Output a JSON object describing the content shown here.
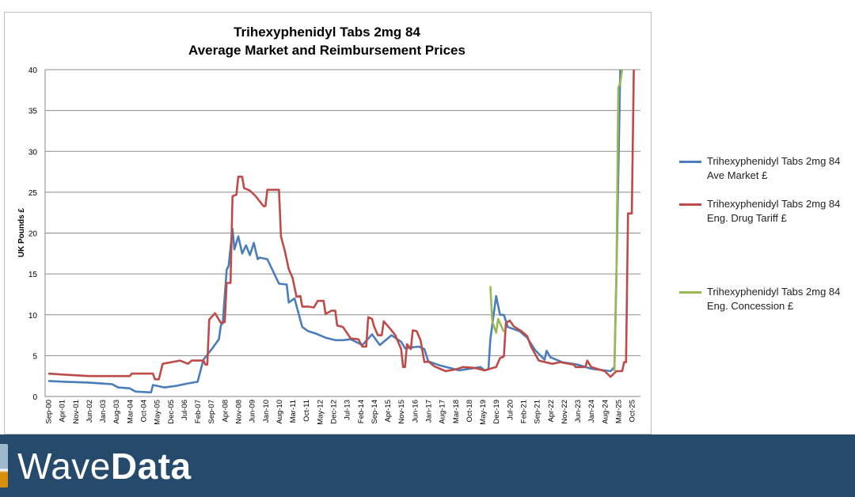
{
  "chart_data": {
    "type": "line",
    "title": "Trihexyphenidyl Tabs 2mg 84",
    "subtitle": "Average Market and Reimbursement Prices",
    "xlabel": "",
    "ylabel": "UK Pounds £",
    "ylim": [
      0,
      40
    ],
    "yticks": [
      0,
      5,
      10,
      15,
      20,
      25,
      30,
      35,
      40
    ],
    "xrange": [
      "2000-09",
      "2026-01"
    ],
    "xtick_labels": [
      "Sep-00",
      "Apr-01",
      "Nov-01",
      "Jun-02",
      "Jan-03",
      "Aug-03",
      "Mar-04",
      "Oct-04",
      "May-05",
      "Dec-05",
      "Jul-06",
      "Feb-07",
      "Sep-07",
      "Apr-08",
      "Nov-08",
      "Jun-09",
      "Jan-10",
      "Aug-10",
      "Mar-11",
      "Oct-11",
      "May-12",
      "Dec-12",
      "Jul-13",
      "Feb-14",
      "Sep-14",
      "Apr-15",
      "Nov-15",
      "Jun-16",
      "Jan-17",
      "Aug-17",
      "Mar-18",
      "Oct-18",
      "May-19",
      "Dec-19",
      "Jul-20",
      "Feb-21",
      "Sep-21",
      "Apr-22",
      "Nov-22",
      "Jun-23",
      "Jan-24",
      "Aug-24",
      "Mar-25",
      "Oct-25"
    ],
    "grid": true,
    "legend_placement": "right",
    "series": [
      {
        "name": "Trihexyphenidyl Tabs 2mg 84\nAve Market £",
        "color": "#4a7ebb",
        "points": [
          [
            "2000-09",
            1.9
          ],
          [
            "2001-06",
            1.8
          ],
          [
            "2002-06",
            1.7
          ],
          [
            "2003-06",
            1.5
          ],
          [
            "2003-09",
            1.1
          ],
          [
            "2004-03",
            1.0
          ],
          [
            "2004-06",
            0.6
          ],
          [
            "2005-02",
            0.5
          ],
          [
            "2005-03",
            1.4
          ],
          [
            "2005-09",
            1.1
          ],
          [
            "2006-03",
            1.3
          ],
          [
            "2006-09",
            1.6
          ],
          [
            "2007-02",
            1.8
          ],
          [
            "2007-05",
            4.5
          ],
          [
            "2007-09",
            5.7
          ],
          [
            "2008-01",
            7
          ],
          [
            "2008-02",
            8.7
          ],
          [
            "2008-03",
            9
          ],
          [
            "2008-05",
            15.5
          ],
          [
            "2008-06",
            16
          ],
          [
            "2008-08",
            20.5
          ],
          [
            "2008-09",
            18
          ],
          [
            "2008-11",
            19.6
          ],
          [
            "2009-01",
            17.5
          ],
          [
            "2009-03",
            18.5
          ],
          [
            "2009-05",
            17.3
          ],
          [
            "2009-07",
            18.8
          ],
          [
            "2009-09",
            16.8
          ],
          [
            "2009-10",
            17
          ],
          [
            "2010-02",
            16.8
          ],
          [
            "2010-06",
            14.8
          ],
          [
            "2010-08",
            13.8
          ],
          [
            "2010-12",
            13.7
          ],
          [
            "2011-01",
            11.5
          ],
          [
            "2011-04",
            12
          ],
          [
            "2011-08",
            8.5
          ],
          [
            "2011-11",
            8
          ],
          [
            "2012-03",
            7.7
          ],
          [
            "2012-08",
            7.2
          ],
          [
            "2013-01",
            6.9
          ],
          [
            "2013-05",
            6.9
          ],
          [
            "2013-09",
            7
          ],
          [
            "2014-03",
            6.3
          ],
          [
            "2014-08",
            7.6
          ],
          [
            "2014-12",
            6.3
          ],
          [
            "2015-06",
            7.5
          ],
          [
            "2015-11",
            6.7
          ],
          [
            "2016-01",
            5.9
          ],
          [
            "2016-04",
            6
          ],
          [
            "2016-08",
            6.1
          ],
          [
            "2016-11",
            5.8
          ],
          [
            "2017-01",
            4.3
          ],
          [
            "2017-07",
            3.8
          ],
          [
            "2018-05",
            3.2
          ],
          [
            "2019-04",
            3.6
          ],
          [
            "2019-06",
            3.2
          ],
          [
            "2019-08",
            3.3
          ],
          [
            "2019-09",
            7.0
          ],
          [
            "2019-12",
            12.3
          ],
          [
            "2020-02",
            10
          ],
          [
            "2020-04",
            10
          ],
          [
            "2020-06",
            8.5
          ],
          [
            "2020-12",
            8
          ],
          [
            "2021-04",
            7.2
          ],
          [
            "2021-08",
            5.7
          ],
          [
            "2022-01",
            4.5
          ],
          [
            "2022-02",
            5.6
          ],
          [
            "2022-04",
            4.8
          ],
          [
            "2022-10",
            4.2
          ],
          [
            "2023-06",
            3.9
          ],
          [
            "2024-01",
            3.4
          ],
          [
            "2024-11",
            3.1
          ],
          [
            "2025-01",
            3.6
          ],
          [
            "2025-02",
            14.8
          ],
          [
            "2025-04",
            40
          ]
        ]
      },
      {
        "name": "Trihexyphenidyl Tabs 2mg 84\nEng. Drug Tariff £",
        "color": "#be4b48",
        "points": [
          [
            "2000-09",
            2.8
          ],
          [
            "2001-03",
            2.7
          ],
          [
            "2002-06",
            2.5
          ],
          [
            "2004-03",
            2.5
          ],
          [
            "2004-04",
            2.8
          ],
          [
            "2005-03",
            2.8
          ],
          [
            "2005-04",
            2.1
          ],
          [
            "2005-06",
            2.1
          ],
          [
            "2005-08",
            4.0
          ],
          [
            "2006-05",
            4.4
          ],
          [
            "2006-09",
            4.0
          ],
          [
            "2006-11",
            4.4
          ],
          [
            "2007-05",
            4.4
          ],
          [
            "2007-06",
            3.9
          ],
          [
            "2007-07",
            3.9
          ],
          [
            "2007-08",
            9.4
          ],
          [
            "2007-11",
            10.2
          ],
          [
            "2008-02",
            9.0
          ],
          [
            "2008-04",
            9.1
          ],
          [
            "2008-05",
            13.9
          ],
          [
            "2008-07",
            13.9
          ],
          [
            "2008-08",
            24.5
          ],
          [
            "2008-10",
            24.7
          ],
          [
            "2008-11",
            26.9
          ],
          [
            "2009-01",
            26.9
          ],
          [
            "2009-02",
            25.5
          ],
          [
            "2009-05",
            25.2
          ],
          [
            "2009-08",
            24.5
          ],
          [
            "2009-12",
            23.3
          ],
          [
            "2010-01",
            23.3
          ],
          [
            "2010-02",
            25.3
          ],
          [
            "2010-08",
            25.3
          ],
          [
            "2010-09",
            19.6
          ],
          [
            "2010-11",
            17.8
          ],
          [
            "2011-01",
            15.6
          ],
          [
            "2011-03",
            14.5
          ],
          [
            "2011-05",
            12.2
          ],
          [
            "2011-07",
            12.3
          ],
          [
            "2011-08",
            11
          ],
          [
            "2011-11",
            11
          ],
          [
            "2012-02",
            10.9
          ],
          [
            "2012-04",
            11.7
          ],
          [
            "2012-07",
            11.7
          ],
          [
            "2012-08",
            10.1
          ],
          [
            "2012-11",
            10.5
          ],
          [
            "2013-01",
            10.5
          ],
          [
            "2013-02",
            8.7
          ],
          [
            "2013-05",
            8.5
          ],
          [
            "2013-09",
            7.1
          ],
          [
            "2014-01",
            7.0
          ],
          [
            "2014-03",
            6.1
          ],
          [
            "2014-05",
            6.1
          ],
          [
            "2014-06",
            9.7
          ],
          [
            "2014-08",
            9.5
          ],
          [
            "2014-09",
            8.6
          ],
          [
            "2014-11",
            7.5
          ],
          [
            "2015-01",
            7.5
          ],
          [
            "2015-02",
            9.2
          ],
          [
            "2015-05",
            8.4
          ],
          [
            "2015-08",
            7.5
          ],
          [
            "2015-11",
            5.8
          ],
          [
            "2015-12",
            3.6
          ],
          [
            "2016-01",
            3.6
          ],
          [
            "2016-02",
            6.4
          ],
          [
            "2016-04",
            5.8
          ],
          [
            "2016-05",
            8.1
          ],
          [
            "2016-07",
            8.0
          ],
          [
            "2016-09",
            6.9
          ],
          [
            "2016-11",
            4.2
          ],
          [
            "2017-01",
            4.3
          ],
          [
            "2017-04",
            3.7
          ],
          [
            "2017-10",
            3.1
          ],
          [
            "2018-03",
            3.3
          ],
          [
            "2018-07",
            3.6
          ],
          [
            "2019-01",
            3.5
          ],
          [
            "2019-06",
            3.2
          ],
          [
            "2019-12",
            3.6
          ],
          [
            "2020-02",
            4.7
          ],
          [
            "2020-04",
            4.9
          ],
          [
            "2020-05",
            9.0
          ],
          [
            "2020-07",
            9.3
          ],
          [
            "2020-09",
            8.6
          ],
          [
            "2021-01",
            8.0
          ],
          [
            "2021-04",
            7.4
          ],
          [
            "2021-06",
            6.1
          ],
          [
            "2021-10",
            4.4
          ],
          [
            "2022-05",
            4.0
          ],
          [
            "2022-09",
            4.2
          ],
          [
            "2023-04",
            3.9
          ],
          [
            "2023-05",
            3.6
          ],
          [
            "2023-10",
            3.6
          ],
          [
            "2023-11",
            4.4
          ],
          [
            "2024-01",
            3.6
          ],
          [
            "2024-08",
            3.1
          ],
          [
            "2024-11",
            2.4
          ],
          [
            "2025-02",
            3.1
          ],
          [
            "2025-05",
            3.1
          ],
          [
            "2025-06",
            4.2
          ],
          [
            "2025-07",
            4.2
          ],
          [
            "2025-08",
            22.4
          ],
          [
            "2025-10",
            22.4
          ],
          [
            "2025-11",
            40
          ]
        ]
      },
      {
        "name": "Trihexyphenidyl Tabs 2mg 84\nEng. Concession £",
        "color": "#98b954",
        "segments": [
          [
            [
              "2019-09",
              13.5
            ],
            [
              "2019-10",
              9.2
            ],
            [
              "2019-12",
              7.8
            ],
            [
              "2020-01",
              9.5
            ],
            [
              "2020-04",
              7.9
            ]
          ],
          [
            [
              "2025-01",
              3.1
            ],
            [
              "2025-02",
              14.2
            ],
            [
              "2025-03",
              37.8
            ],
            [
              "2025-04",
              38.4
            ],
            [
              "2025-05",
              40
            ]
          ]
        ]
      }
    ]
  },
  "banner": {
    "logo_text_light": "Wave",
    "logo_text_bold": "Data",
    "background": "#264a6b"
  }
}
